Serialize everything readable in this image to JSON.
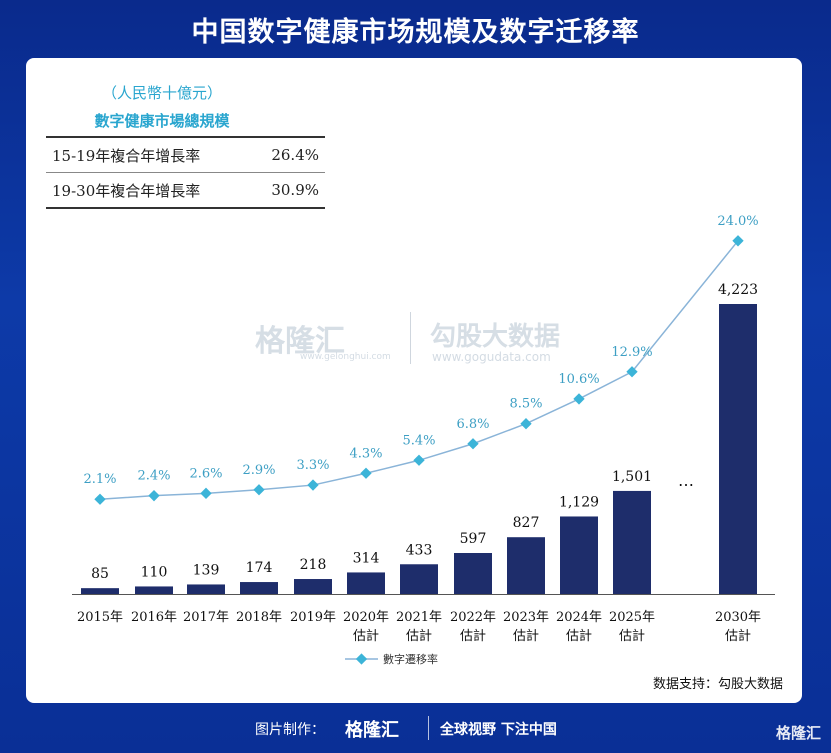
{
  "header": {
    "title": "中国数字健康市场规模及数字迁移率"
  },
  "legend_box": {
    "unit": "（人民幣十億元）",
    "title": "數字健康市場總規模",
    "rows": [
      {
        "label": "15-19年複合年增長率",
        "value": "26.4%"
      },
      {
        "label": "19-30年複合年增長率",
        "value": "30.9%"
      }
    ]
  },
  "watermarks": {
    "brand": "格隆汇",
    "brand_url": "www.gelonghui.com",
    "data": "勾股大数据",
    "data_url": "www.gogudata.com"
  },
  "chart_data": {
    "type": "bar",
    "categories": [
      "2015年",
      "2016年",
      "2017年",
      "2018年",
      "2019年",
      "2020年\n估計",
      "2021年\n估計",
      "2022年\n估計",
      "2023年\n估計",
      "2024年\n估計",
      "2025年\n估計",
      "2030年\n估計"
    ],
    "series": [
      {
        "name": "",
        "type": "bar",
        "values": [
          85,
          110,
          139,
          174,
          218,
          314,
          433,
          597,
          827,
          1129,
          1501,
          4223
        ],
        "labels": [
          "85",
          "110",
          "139",
          "174",
          "218",
          "314",
          "433",
          "597",
          "827",
          "1,129",
          "1,501",
          "4,223"
        ]
      },
      {
        "name": "數字遷移率",
        "type": "line",
        "values": [
          2.1,
          2.4,
          2.6,
          2.9,
          3.3,
          4.3,
          5.4,
          6.8,
          8.5,
          10.6,
          12.9,
          24.0
        ],
        "labels": [
          "2.1%",
          "2.4%",
          "2.6%",
          "2.9%",
          "3.3%",
          "4.3%",
          "5.4%",
          "6.8%",
          "8.5%",
          "10.6%",
          "12.9%",
          "24.0%"
        ]
      }
    ],
    "gap_label": "…",
    "colors": {
      "bar": "#1e2d6b",
      "line": "#8ab4d8",
      "marker": "#3cb4d8"
    }
  },
  "source": "数据支持：勾股大数据",
  "footer": {
    "made_by": "图片制作：",
    "brand": "格隆汇",
    "slogan": "全球视野 下注中国",
    "corner": "格隆汇"
  }
}
